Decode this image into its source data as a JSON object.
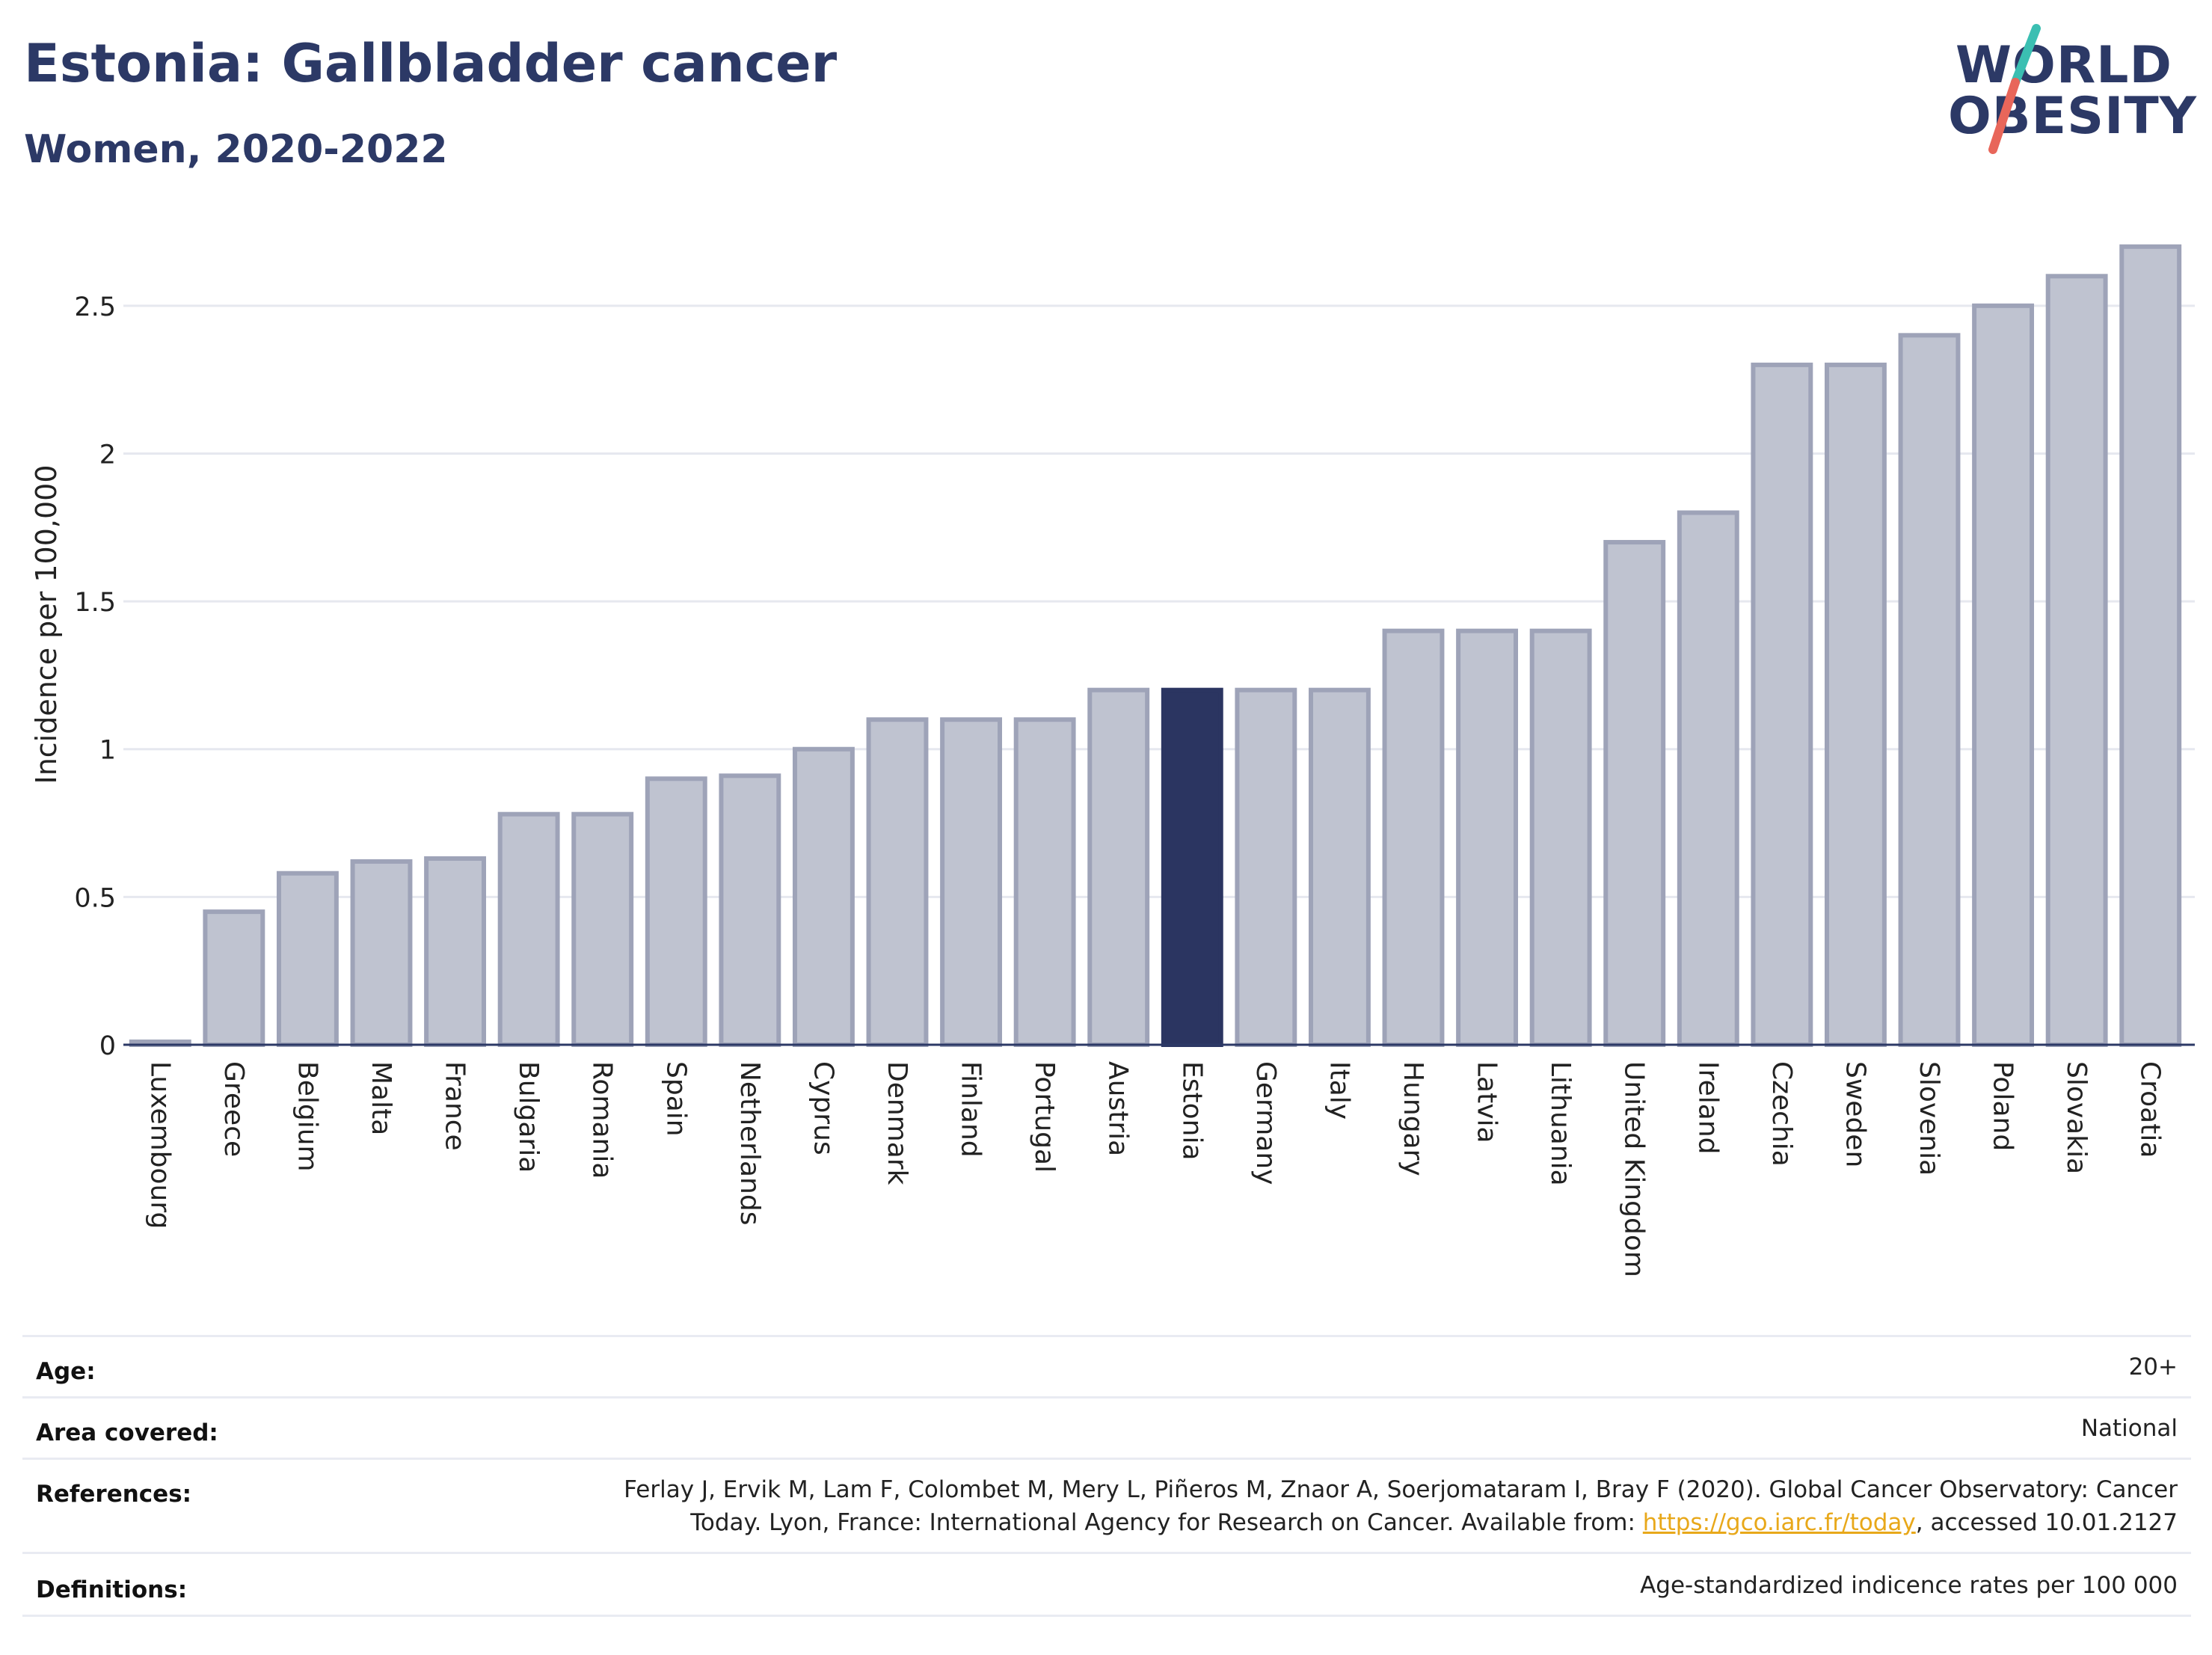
{
  "header": {
    "title": "Estonia: Gallbladder cancer",
    "subtitle": "Women, 2020-2022"
  },
  "logo": {
    "line1": "WORLD",
    "line2": "OBESITY",
    "accent_colors": [
      "#3bbfb2",
      "#e8665a"
    ]
  },
  "colors": {
    "bar_default": "#bfc3d0",
    "bar_border": "#9ea3b8",
    "bar_highlight": "#2b3561",
    "grid": "#e6e8ef",
    "axis": "#2c3966"
  },
  "chart_data": {
    "type": "bar",
    "ylabel": "Incidence per 100,000",
    "ylim": [
      0,
      2.75
    ],
    "yticks": [
      0,
      0.5,
      1,
      1.5,
      2,
      2.5
    ],
    "ytick_labels": [
      "0",
      "0.5",
      "1",
      "1.5",
      "2",
      "2.5"
    ],
    "grid": true,
    "highlight": "Estonia",
    "categories": [
      "Luxembourg",
      "Greece",
      "Belgium",
      "Malta",
      "France",
      "Bulgaria",
      "Romania",
      "Spain",
      "Netherlands",
      "Cyprus",
      "Denmark",
      "Finland",
      "Portugal",
      "Austria",
      "Estonia",
      "Germany",
      "Italy",
      "Hungary",
      "Latvia",
      "Lithuania",
      "United Kingdom",
      "Ireland",
      "Czechia",
      "Sweden",
      "Slovenia",
      "Poland",
      "Slovakia",
      "Croatia"
    ],
    "values": [
      0.01,
      0.45,
      0.58,
      0.62,
      0.63,
      0.78,
      0.78,
      0.9,
      0.91,
      1.0,
      1.1,
      1.1,
      1.1,
      1.2,
      1.2,
      1.2,
      1.2,
      1.4,
      1.4,
      1.4,
      1.7,
      1.8,
      2.3,
      2.3,
      2.4,
      2.5,
      2.6,
      2.7
    ]
  },
  "meta": {
    "age_label": "Age:",
    "age_value": "20+",
    "area_label": "Area covered:",
    "area_value": "National",
    "references_label": "References:",
    "references_line1": "Ferlay J, Ervik M, Lam F, Colombet M, Mery L, Piñeros M, Znaor A, Soerjomataram I, Bray F (2020). Global Cancer Observatory: Cancer",
    "references_line2_pre": "Today. Lyon, France: International Agency for Research on Cancer. Available from: ",
    "references_link": "https://gco.iarc.fr/today",
    "references_line2_post": ", accessed 10.01.2127",
    "definitions_label": "Definitions:",
    "definitions_value": "Age-standardized indicence rates per 100 000"
  }
}
